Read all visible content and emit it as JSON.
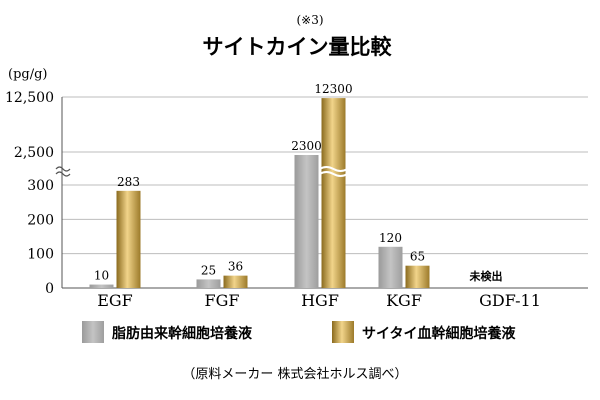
{
  "note": "(※3)",
  "title": "サイトカイン量比較",
  "unit": "(pg/g)",
  "source": "（原料メーカー 株式会社ホルス調べ）",
  "chart_data": {
    "type": "bar",
    "title": "サイトカイン量比較",
    "ylabel": "(pg/g)",
    "xlabel": "",
    "y_axis": "broken scale (two breaks)",
    "yticks": [
      {
        "label": "0",
        "value": 0
      },
      {
        "label": "100",
        "value": 100
      },
      {
        "label": "200",
        "value": 200
      },
      {
        "label": "300",
        "value": 300
      },
      {
        "label": "2,500",
        "value": 2500
      },
      {
        "label": "12,500",
        "value": 12500
      }
    ],
    "grid": true,
    "legend_position": "bottom",
    "categories": [
      "EGF",
      "FGF",
      "HGF",
      "KGF",
      "GDF-11"
    ],
    "series": [
      {
        "name": "脂肪由来幹細胞培養液",
        "color": "#a8a8a8",
        "values": [
          10,
          25,
          2300,
          120,
          null
        ],
        "labels": [
          "10",
          "25",
          "2300",
          "120",
          ""
        ]
      },
      {
        "name": "サイタイ血幹細胞培養液",
        "color": "#c49a3c",
        "values": [
          283,
          36,
          12300,
          65,
          null
        ],
        "labels": [
          "283",
          "36",
          "12300",
          "65",
          ""
        ]
      }
    ],
    "annotations": [
      {
        "category": "GDF-11",
        "text": "未検出"
      }
    ]
  }
}
